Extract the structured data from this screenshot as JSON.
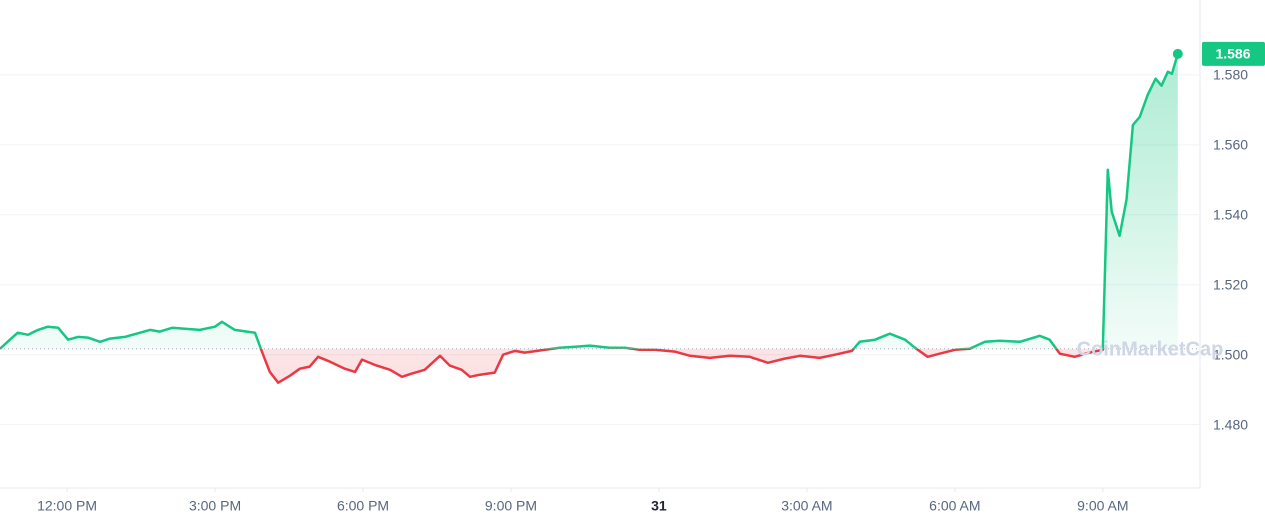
{
  "chart_data": {
    "type": "line",
    "watermark": "CoinMarketCap",
    "x": [
      10.64,
      10.84,
      11.0,
      11.21,
      11.41,
      11.61,
      11.82,
      12.02,
      12.22,
      12.42,
      12.67,
      12.87,
      13.17,
      13.48,
      13.68,
      13.88,
      14.13,
      14.39,
      14.69,
      15.0,
      15.14,
      15.4,
      15.81,
      15.95,
      16.11,
      16.28,
      16.52,
      16.72,
      16.92,
      17.09,
      17.33,
      17.63,
      17.84,
      17.98,
      18.24,
      18.55,
      18.79,
      18.99,
      19.25,
      19.56,
      19.76,
      20.0,
      20.17,
      20.37,
      20.67,
      20.84,
      21.08,
      21.28,
      21.69,
      21.99,
      22.3,
      22.6,
      23.0,
      23.31,
      23.61,
      23.92,
      24.32,
      24.63,
      25.03,
      25.44,
      25.84,
      26.21,
      26.55,
      26.86,
      27.26,
      27.57,
      27.91,
      28.07,
      28.38,
      28.68,
      28.99,
      29.19,
      29.45,
      29.69,
      30.0,
      30.3,
      30.61,
      30.91,
      31.32,
      31.72,
      31.92,
      32.13,
      32.43,
      32.73,
      33.0,
      33.1,
      33.18,
      33.34,
      33.48,
      33.61,
      33.75,
      33.91,
      34.07,
      34.19,
      34.32,
      34.4,
      34.52
    ],
    "values": [
      1.5017,
      1.5043,
      1.5063,
      1.5057,
      1.5071,
      1.508,
      1.5077,
      1.5043,
      1.5051,
      1.5049,
      1.5037,
      1.5046,
      1.5051,
      1.5063,
      1.5071,
      1.5066,
      1.5077,
      1.5074,
      1.5071,
      1.508,
      1.5094,
      1.5071,
      1.5063,
      1.5009,
      1.4951,
      1.492,
      1.494,
      1.496,
      1.4966,
      1.4994,
      1.498,
      1.496,
      1.4951,
      1.4986,
      1.4971,
      1.4957,
      1.4937,
      1.4946,
      1.4957,
      1.4997,
      1.4969,
      1.4957,
      1.4937,
      1.4943,
      1.4949,
      1.5,
      1.5011,
      1.5006,
      1.5014,
      1.502,
      1.5023,
      1.5026,
      1.502,
      1.502,
      1.5014,
      1.5014,
      1.5009,
      1.4997,
      1.4991,
      1.4997,
      1.4994,
      1.4977,
      1.4989,
      1.4997,
      1.4991,
      1.5,
      1.5011,
      1.5037,
      1.5043,
      1.506,
      1.5043,
      1.502,
      1.4994,
      1.5003,
      1.5014,
      1.5017,
      1.5037,
      1.504,
      1.5037,
      1.5054,
      1.5043,
      1.5003,
      1.4994,
      1.5006,
      1.5014,
      1.5529,
      1.5409,
      1.534,
      1.5443,
      1.5657,
      1.568,
      1.5743,
      1.5789,
      1.5769,
      1.5809,
      1.5803,
      1.586
    ],
    "last_price": 1.586,
    "baseline": 1.5017,
    "color_up": "#16c784",
    "color_down": "#ea3943",
    "xlim": [
      10.64,
      34.97
    ],
    "ylim": [
      1.4619,
      1.6014
    ],
    "xticks": [
      {
        "value": 12,
        "label": "12:00 PM"
      },
      {
        "value": 15,
        "label": "3:00 PM"
      },
      {
        "value": 18,
        "label": "6:00 PM"
      },
      {
        "value": 21,
        "label": "9:00 PM"
      },
      {
        "value": 24,
        "label": "31"
      },
      {
        "value": 27,
        "label": "3:00 AM"
      },
      {
        "value": 30,
        "label": "6:00 AM"
      },
      {
        "value": 33,
        "label": "9:00 AM"
      }
    ],
    "yticks": [
      {
        "value": 1.58,
        "label": "1.580"
      },
      {
        "value": 1.56,
        "label": "1.560"
      },
      {
        "value": 1.54,
        "label": "1.540"
      },
      {
        "value": 1.52,
        "label": "1.520"
      },
      {
        "value": 1.5,
        "label": "1.500"
      },
      {
        "value": 1.48,
        "label": "1.480"
      }
    ],
    "grid": true
  }
}
